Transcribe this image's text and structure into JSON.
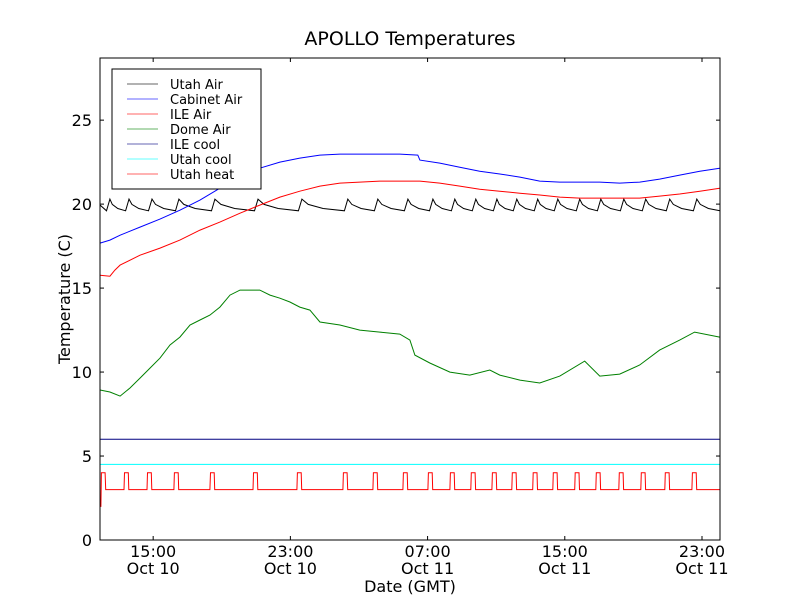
{
  "chart_data": {
    "type": "line",
    "title": "APOLLO Temperatures",
    "xlabel": "Date (GMT)",
    "ylabel": "Temperature (C)",
    "x_units": "hours since Oct 10 00:00 GMT",
    "xlim": [
      11.9,
      48.05
    ],
    "ylim": [
      0,
      28.7
    ],
    "grid": false,
    "legend_position": "top-left",
    "yticks": [
      0,
      5,
      10,
      15,
      20,
      25
    ],
    "xticks": [
      {
        "value": 15,
        "time": "15:00",
        "date": "Oct 10"
      },
      {
        "value": 23,
        "time": "23:00",
        "date": "Oct 10"
      },
      {
        "value": 31,
        "time": "07:00",
        "date": "Oct 11"
      },
      {
        "value": 39,
        "time": "15:00",
        "date": "Oct 11"
      },
      {
        "value": 47,
        "time": "23:00",
        "date": "Oct 11"
      }
    ],
    "series": [
      {
        "name": "Utah Air",
        "color": "#000000",
        "kind": "sawtooth",
        "peak_value": 20.3,
        "trough_value": 19.6,
        "peaks": [
          12.48,
          13.59,
          14.93,
          16.5,
          18.6,
          21.11,
          23.67,
          26.35,
          28.1,
          29.85,
          31.31,
          32.59,
          33.81,
          35.04,
          36.2,
          37.42,
          38.59,
          39.87,
          41.1,
          42.44,
          43.72,
          45.12,
          46.7
        ]
      },
      {
        "name": "Cabinet Air",
        "color": "#0000ff",
        "x": [
          11.9,
          12.48,
          13.07,
          14.23,
          15.4,
          16.56,
          17.73,
          18.89,
          20.06,
          21.22,
          22.39,
          23.55,
          24.72,
          25.89,
          27.05,
          28.22,
          29.38,
          30.43,
          30.55,
          31.71,
          32.88,
          34.04,
          35.21,
          36.38,
          37.54,
          38.71,
          39.87,
          41.04,
          42.2,
          43.37,
          44.53,
          45.7,
          46.87,
          48.03
        ],
        "y": [
          17.68,
          17.86,
          18.15,
          18.63,
          19.11,
          19.64,
          20.24,
          20.95,
          21.55,
          22.14,
          22.5,
          22.74,
          22.92,
          22.98,
          22.98,
          22.98,
          22.98,
          22.92,
          22.62,
          22.44,
          22.2,
          21.96,
          21.79,
          21.61,
          21.37,
          21.31,
          21.31,
          21.31,
          21.25,
          21.31,
          21.49,
          21.73,
          21.96,
          22.14
        ]
      },
      {
        "name": "ILE Air",
        "color": "#ff0000",
        "x": [
          11.9,
          12.48,
          12.77,
          13.07,
          14.23,
          15.4,
          16.56,
          17.73,
          18.89,
          20.06,
          21.22,
          22.39,
          23.55,
          24.72,
          25.89,
          27.05,
          28.22,
          30.55,
          31.71,
          32.88,
          34.04,
          35.21,
          36.38,
          37.54,
          38.71,
          39.87,
          41.04,
          42.2,
          43.37,
          44.53,
          45.7,
          46.87,
          48.03
        ],
        "y": [
          15.77,
          15.71,
          16.07,
          16.37,
          16.96,
          17.38,
          17.86,
          18.45,
          18.93,
          19.46,
          19.94,
          20.42,
          20.77,
          21.07,
          21.25,
          21.31,
          21.37,
          21.37,
          21.25,
          21.07,
          20.89,
          20.77,
          20.65,
          20.54,
          20.42,
          20.36,
          20.36,
          20.36,
          20.36,
          20.48,
          20.6,
          20.77,
          20.95
        ]
      },
      {
        "name": "Dome Air",
        "color": "#008000",
        "x": [
          11.9,
          12.48,
          13.07,
          13.65,
          14.23,
          14.82,
          15.4,
          15.98,
          16.56,
          17.15,
          17.73,
          18.31,
          18.89,
          19.48,
          20.06,
          20.64,
          21.22,
          21.81,
          22.39,
          22.97,
          23.55,
          24.14,
          24.72,
          25.89,
          27.05,
          28.22,
          29.38,
          29.97,
          30.26,
          31.13,
          32.3,
          33.46,
          34.63,
          35.21,
          36.38,
          37.54,
          38.71,
          40.16,
          41.04,
          42.2,
          43.37,
          44.53,
          45.7,
          46.57,
          48.03
        ],
        "y": [
          8.93,
          8.81,
          8.57,
          9.05,
          9.64,
          10.24,
          10.83,
          11.61,
          12.08,
          12.8,
          13.1,
          13.39,
          13.87,
          14.58,
          14.88,
          14.88,
          14.88,
          14.58,
          14.4,
          14.17,
          13.87,
          13.69,
          12.98,
          12.8,
          12.5,
          12.38,
          12.26,
          11.9,
          11.01,
          10.54,
          10.0,
          9.82,
          10.12,
          9.82,
          9.52,
          9.35,
          9.76,
          10.65,
          9.76,
          9.88,
          10.42,
          11.31,
          11.9,
          12.38,
          12.08
        ]
      },
      {
        "name": "ILE cool",
        "color": "#000080",
        "x": [
          11.9,
          48.05
        ],
        "y": [
          6.0,
          6.0
        ]
      },
      {
        "name": "Utah cool",
        "color": "#00ffff",
        "x": [
          11.9,
          48.05
        ],
        "y": [
          4.5,
          4.5
        ]
      },
      {
        "name": "Utah heat",
        "color": "#ff0000",
        "kind": "pulses",
        "initial_value": 2,
        "off_value": 3,
        "on_value": 4,
        "pulse_duration": 0.25,
        "pulse_starts": [
          11.95,
          13.3,
          14.64,
          16.21,
          18.31,
          20.82,
          23.38,
          26.06,
          27.81,
          29.56,
          31.02,
          32.3,
          33.52,
          34.75,
          35.91,
          37.13,
          38.3,
          39.58,
          40.81,
          42.15,
          43.43,
          44.83,
          46.41
        ]
      }
    ]
  }
}
